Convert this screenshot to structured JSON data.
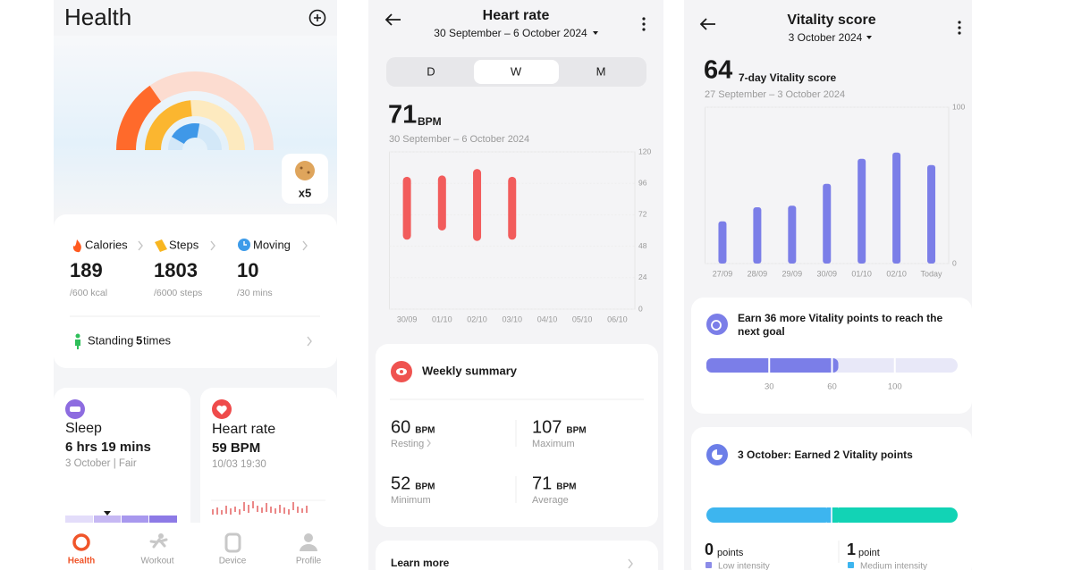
{
  "health": {
    "title": "Health",
    "badge": "x5",
    "metrics": [
      {
        "label": "Calories",
        "value": "189",
        "goal": "/600 kcal"
      },
      {
        "label": "Steps",
        "value": "1803",
        "goal": "/6000 steps"
      },
      {
        "label": "Moving",
        "value": "10",
        "goal": "/30 mins"
      }
    ],
    "standing": {
      "label": "Standing",
      "count": "5",
      "unit": "times"
    },
    "sleep": {
      "title": "Sleep",
      "value": "6 hrs 19 mins",
      "detail": "3 October | Fair"
    },
    "heart": {
      "title": "Heart rate",
      "value": "59 BPM",
      "detail": "10/03 19:30"
    },
    "nav": [
      "Health",
      "Workout",
      "Device",
      "Profile"
    ]
  },
  "heart_rate": {
    "title": "Heart rate",
    "range": "30 September – 6 October 2024",
    "tabs": [
      "D",
      "W",
      "M"
    ],
    "headline": {
      "value": "71",
      "unit": "BPM",
      "range": "30 September – 6 October 2024"
    },
    "chart": {
      "type": "range_bar",
      "categories": [
        "30/09",
        "01/10",
        "02/10",
        "03/10",
        "04/10",
        "05/10",
        "06/10"
      ],
      "low": [
        53,
        60,
        52,
        53,
        null,
        null,
        null
      ],
      "high": [
        101,
        102,
        107,
        101,
        null,
        null,
        null
      ],
      "color": "#f25c5c",
      "ylim": [
        0,
        120
      ],
      "yticks": [
        0,
        24,
        48,
        72,
        96,
        120
      ]
    },
    "summary": {
      "title": "Weekly summary",
      "items": [
        {
          "value": "60",
          "unit": "BPM",
          "label": "Resting"
        },
        {
          "value": "107",
          "unit": "BPM",
          "label": "Maximum"
        },
        {
          "value": "52",
          "unit": "BPM",
          "label": "Minimum"
        },
        {
          "value": "71",
          "unit": "BPM",
          "label": "Average"
        }
      ]
    },
    "learn_more": "Learn more"
  },
  "vitality": {
    "title": "Vitality score",
    "date": "3 October 2024",
    "score": 64,
    "score_label": "7-day Vitality score",
    "range": "27 September – 3 October 2024",
    "chart": {
      "type": "bar",
      "categories": [
        "27/09",
        "28/09",
        "29/09",
        "30/09",
        "01/10",
        "02/10",
        "Today"
      ],
      "values": [
        27,
        36,
        37,
        51,
        67,
        71,
        63
      ],
      "color": "#7b7ee8",
      "ylim": [
        0,
        100
      ],
      "yticks": [
        0,
        100
      ]
    },
    "goal": {
      "lines": [
        "Earn 36 more Vitality points to reach the",
        "next goal"
      ],
      "ticks": [
        30,
        60,
        100
      ]
    },
    "earned": {
      "title": "3 October: Earned 2 Vitality points",
      "items": [
        {
          "value": "0",
          "unit": "points",
          "label": "Low intensity"
        },
        {
          "value": "1",
          "unit": "point",
          "label": "Medium intensity"
        }
      ]
    }
  }
}
